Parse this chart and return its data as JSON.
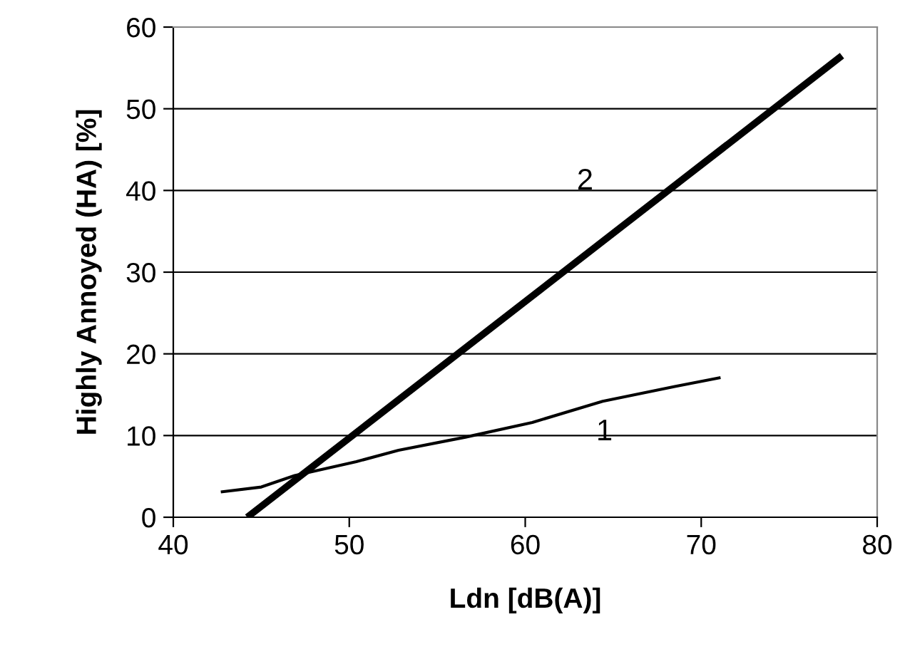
{
  "chart_data": {
    "type": "line",
    "xlabel": "Ldn [dB(A)]",
    "ylabel": "Highly Annoyed (HA) [%]",
    "xlim": [
      40,
      80
    ],
    "xticks": [
      40,
      50,
      60,
      70,
      80
    ],
    "ylim": [
      0,
      60
    ],
    "yticks": [
      0,
      10,
      20,
      30,
      40,
      50,
      60
    ],
    "grid": "y",
    "legend": false,
    "marker": "none",
    "line_style": "solid",
    "series": [
      {
        "name": "1",
        "color": "#000000",
        "x": [
          42.7,
          45.0,
          46.9,
          50.4,
          52.8,
          56.6,
          60.4,
          64.4,
          68.5,
          71.1
        ],
        "values": [
          3.1,
          3.7,
          5.1,
          6.8,
          8.2,
          9.8,
          11.6,
          14.2,
          16.0,
          17.1
        ]
      },
      {
        "name": "2",
        "color": "#000000",
        "x": [
          44.2,
          78.0
        ],
        "values": [
          0,
          56.5
        ]
      }
    ]
  }
}
